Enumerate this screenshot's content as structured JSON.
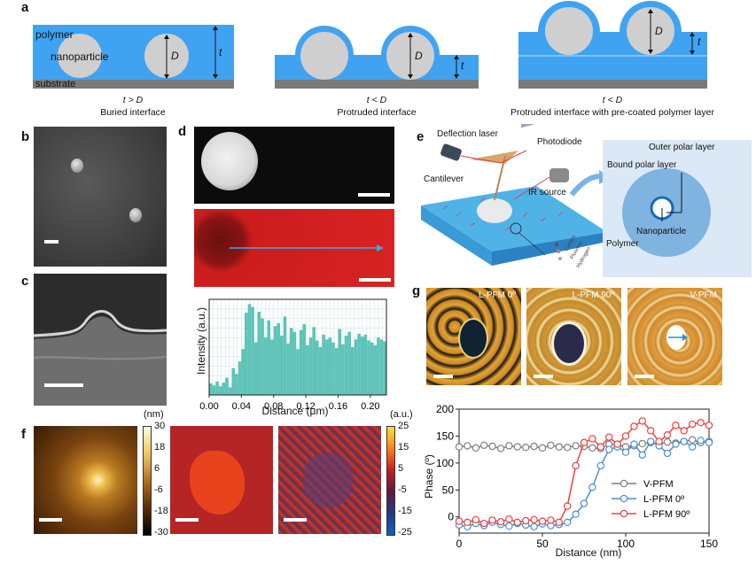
{
  "panel_labels": {
    "a": "a",
    "b": "b",
    "c": "c",
    "d": "d",
    "e": "e",
    "f": "f",
    "g": "g"
  },
  "panel_a": {
    "label_polymer": "polymer",
    "label_nanoparticle": "nanoparticle",
    "label_substrate": "substrate",
    "label_D": "D",
    "label_t": "t",
    "schemes": [
      {
        "condition": "t > D",
        "caption": "Buried interface"
      },
      {
        "condition": "t < D",
        "caption": "Protruded interface"
      },
      {
        "condition": "t < D",
        "caption": "Protruded interface with pre-coated polymer layer"
      }
    ],
    "colors": {
      "polymer": "#3fa3f2",
      "particle": "#cfcfcf",
      "substrate": "#7a7a7a"
    }
  },
  "panel_e": {
    "deflection_laser": "Deflection laser",
    "photodiode": "Photodiode",
    "cantilever": "Cantilever",
    "ir_source": "IR source",
    "legend_carbon": "Carbon",
    "legend_fluorine": "Fluorine",
    "legend_hydrogen": "Hydrogen",
    "outer_polar_layer": "Outer polar layer",
    "bound_polar_layer": "Bound polar layer",
    "nanoparticle": "Nanoparticle",
    "polymer": "Polymer"
  },
  "panel_g": {
    "titles": [
      "L-PFM 0º",
      "L-PFM 90º",
      "V-PFM"
    ]
  },
  "panel_f": {
    "colorbar1": {
      "unit": "(nm)",
      "ticks": [
        "30",
        "18",
        "6",
        "-6",
        "-18",
        "-30"
      ]
    },
    "colorbar2": {
      "unit": "(a.u.)",
      "ticks": [
        "25",
        "15",
        "5",
        "-5",
        "-15",
        "-25"
      ]
    }
  },
  "chart_data": [
    {
      "type": "bar",
      "panel": "d",
      "xlabel": "Distance (μm)",
      "ylabel": "Intensity (a.u.)",
      "xlim": [
        0.0,
        0.22
      ],
      "xticks": [
        "0.00",
        "0.04",
        "0.08",
        "0.12",
        "0.16",
        "0.20"
      ],
      "color": "#5fc3b8",
      "x": [
        0.0,
        0.004,
        0.008,
        0.012,
        0.016,
        0.02,
        0.024,
        0.028,
        0.032,
        0.036,
        0.04,
        0.044,
        0.048,
        0.052,
        0.056,
        0.06,
        0.064,
        0.068,
        0.072,
        0.076,
        0.08,
        0.084,
        0.088,
        0.092,
        0.096,
        0.1,
        0.104,
        0.108,
        0.112,
        0.116,
        0.12,
        0.124,
        0.128,
        0.132,
        0.136,
        0.14,
        0.144,
        0.148,
        0.152,
        0.156,
        0.16,
        0.164,
        0.168,
        0.172,
        0.176,
        0.18,
        0.184,
        0.188,
        0.192,
        0.196,
        0.2,
        0.204,
        0.208,
        0.212,
        0.216
      ],
      "values": [
        0.12,
        0.1,
        0.14,
        0.09,
        0.13,
        0.18,
        0.08,
        0.28,
        0.22,
        0.35,
        0.48,
        0.86,
        0.95,
        0.92,
        0.55,
        0.87,
        0.8,
        0.6,
        0.78,
        0.58,
        0.72,
        0.75,
        0.62,
        0.82,
        0.54,
        0.7,
        0.66,
        0.48,
        0.68,
        0.74,
        0.52,
        0.6,
        0.71,
        0.57,
        0.5,
        0.63,
        0.58,
        0.6,
        0.55,
        0.49,
        0.69,
        0.53,
        0.62,
        0.66,
        0.5,
        0.58,
        0.64,
        0.61,
        0.63,
        0.57,
        0.55,
        0.52,
        0.6,
        0.58,
        0.56
      ]
    },
    {
      "type": "line",
      "panel": "g",
      "xlabel": "Distance (nm)",
      "ylabel": "Phase (º)",
      "xlim": [
        0,
        150
      ],
      "ylim": [
        0,
        200
      ],
      "xticks": [
        0,
        50,
        100,
        150
      ],
      "yticks": [
        0,
        50,
        100,
        150,
        200
      ],
      "legend_position": "bottom-right",
      "series": [
        {
          "name": "V-PFM",
          "color": "#7f7f7f",
          "x": [
            0,
            5,
            10,
            15,
            20,
            25,
            30,
            35,
            40,
            45,
            50,
            55,
            60,
            65,
            70,
            75,
            80,
            85,
            90,
            95,
            100,
            105,
            110,
            115,
            120,
            125,
            130,
            135,
            140,
            145,
            150
          ],
          "y": [
            130,
            132,
            128,
            133,
            131,
            127,
            132,
            130,
            129,
            131,
            128,
            133,
            130,
            129,
            132,
            131,
            128,
            127,
            135,
            134,
            130,
            132,
            136,
            138,
            135,
            139,
            137,
            140,
            143,
            138,
            140
          ]
        },
        {
          "name": "L-PFM 0º",
          "color": "#4a8fd6",
          "x": [
            0,
            5,
            10,
            15,
            20,
            25,
            30,
            35,
            40,
            45,
            50,
            55,
            60,
            65,
            70,
            75,
            80,
            85,
            90,
            95,
            100,
            105,
            110,
            115,
            120,
            125,
            130,
            135,
            140,
            145,
            150
          ],
          "y": [
            -15,
            -18,
            -12,
            -16,
            -10,
            -14,
            -17,
            -12,
            -15,
            -18,
            -13,
            -16,
            -14,
            -10,
            5,
            25,
            55,
            95,
            125,
            130,
            120,
            135,
            115,
            140,
            132,
            118,
            135,
            140,
            130,
            142,
            138
          ]
        },
        {
          "name": "L-PFM 90º",
          "color": "#f04040",
          "x": [
            0,
            5,
            10,
            15,
            20,
            25,
            30,
            35,
            40,
            45,
            50,
            55,
            60,
            65,
            70,
            75,
            80,
            85,
            90,
            95,
            100,
            105,
            110,
            115,
            120,
            125,
            130,
            135,
            140,
            145,
            150
          ],
          "y": [
            -8,
            -10,
            -5,
            -12,
            -6,
            -9,
            -4,
            -10,
            -7,
            -5,
            -8,
            -6,
            -10,
            20,
            95,
            138,
            145,
            130,
            148,
            135,
            150,
            168,
            178,
            160,
            140,
            152,
            170,
            160,
            172,
            175,
            170
          ]
        }
      ]
    }
  ]
}
